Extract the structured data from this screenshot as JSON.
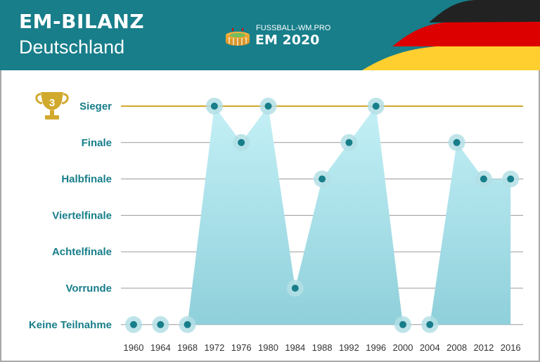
{
  "header": {
    "title": "EM-BILANZ",
    "subtitle": "Deutschland",
    "brand_site": "FUSSBALL-WM.PRO",
    "brand_name": "EM 2020"
  },
  "trophy_count": "3",
  "colors": {
    "header_bg": "#177e8a",
    "area_top": "#c4f0f6",
    "area_bottom": "#8fd0db",
    "marker": "#177e8a",
    "marker_halo": "#b3dfe5",
    "sieger_line": "#d1a92c",
    "grid": "#9a9a9a",
    "flag_black": "#222222",
    "flag_red": "#dd0000",
    "flag_gold": "#ffce2f"
  },
  "chart_data": {
    "type": "area",
    "title": "EM-BILANZ",
    "subtitle": "Deutschland",
    "xlabel": "",
    "ylabel": "",
    "categories": [
      "1960",
      "1964",
      "1968",
      "1972",
      "1976",
      "1980",
      "1984",
      "1988",
      "1992",
      "1996",
      "2000",
      "2004",
      "2008",
      "2012",
      "2016"
    ],
    "levels": [
      "Keine Teilnahme",
      "Vorrunde",
      "Achtelfinale",
      "Viertelfinale",
      "Halbfinale",
      "Finale",
      "Sieger"
    ],
    "values": [
      0,
      0,
      0,
      6,
      5,
      6,
      1,
      4,
      5,
      6,
      0,
      0,
      5,
      4,
      4
    ],
    "grid": true,
    "legend": "none"
  }
}
